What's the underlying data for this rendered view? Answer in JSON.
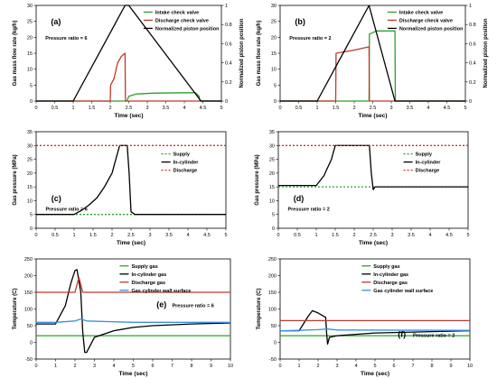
{
  "chart_data": [
    {
      "panel": "(a)",
      "type": "line",
      "annotation": "Pressure ratio = 6",
      "xlabel": "Time (sec)",
      "ylabel": "Gas mass flow rate (kg/h)",
      "y2label": "Normalized piston position",
      "xlim": [
        0,
        5
      ],
      "ylim": [
        0,
        30
      ],
      "y2lim": [
        0,
        1
      ],
      "xticks": [
        0,
        0.5,
        1,
        1.5,
        2,
        2.5,
        3,
        3.5,
        4,
        4.5,
        5
      ],
      "yticks": [
        0,
        5,
        10,
        15,
        20,
        25,
        30
      ],
      "y2ticks": [
        0,
        0.2,
        0.4,
        0.6,
        0.8,
        1
      ],
      "legend_position": "top-right",
      "series": [
        {
          "name": "Intake check valve",
          "color": "#2ca02c",
          "axis": "left",
          "x": [
            0,
            2.45,
            2.5,
            2.7,
            3.2,
            4.0,
            4.3,
            4.4,
            4.42,
            5
          ],
          "y": [
            0,
            0,
            1.5,
            2.2,
            2.5,
            2.6,
            2.6,
            1.5,
            0,
            0
          ]
        },
        {
          "name": "Discharge check valve",
          "color": "#c0392b",
          "axis": "left",
          "x": [
            0,
            2.0,
            2.01,
            2.1,
            2.2,
            2.3,
            2.4,
            2.41,
            5
          ],
          "y": [
            0,
            0,
            5,
            7,
            12,
            14,
            15,
            0,
            0
          ]
        },
        {
          "name": "Normalized piston position",
          "color": "#000000",
          "axis": "right",
          "x": [
            0,
            1.0,
            2.4,
            2.5,
            4.45,
            5
          ],
          "y": [
            0,
            0,
            1.0,
            1.0,
            0,
            0
          ]
        }
      ]
    },
    {
      "panel": "(b)",
      "type": "line",
      "annotation": "Pressure ratio = 2",
      "xlabel": "Time (sec)",
      "ylabel": "Gas mass flow rate (kg/h)",
      "y2label": "Normalized piston position",
      "xlim": [
        0,
        5
      ],
      "ylim": [
        0,
        30
      ],
      "y2lim": [
        0,
        1
      ],
      "xticks": [
        0,
        0.5,
        1,
        1.5,
        2,
        2.5,
        3,
        3.5,
        4,
        4.5,
        5
      ],
      "yticks": [
        0,
        5,
        10,
        15,
        20,
        25,
        30
      ],
      "y2ticks": [
        0,
        0.2,
        0.4,
        0.6,
        0.8,
        1
      ],
      "legend_position": "top-right",
      "series": [
        {
          "name": "Intake check valve",
          "color": "#2ca02c",
          "axis": "left",
          "x": [
            0,
            2.4,
            2.41,
            2.6,
            3.1,
            3.11,
            5
          ],
          "y": [
            0,
            0,
            21,
            22,
            22,
            0,
            0
          ]
        },
        {
          "name": "Discharge check valve",
          "color": "#c0392b",
          "axis": "left",
          "x": [
            0,
            1.5,
            1.51,
            2.0,
            2.4,
            2.41,
            5
          ],
          "y": [
            0,
            0,
            15,
            16,
            17,
            0,
            0
          ]
        },
        {
          "name": "Normalized piston position",
          "color": "#000000",
          "axis": "right",
          "x": [
            0,
            1.0,
            2.4,
            3.1,
            5
          ],
          "y": [
            0,
            0,
            1.0,
            0,
            0
          ]
        }
      ]
    },
    {
      "panel": "(c)",
      "type": "line",
      "annotation": "Pressure ratio = 6",
      "xlabel": "Time (sec)",
      "ylabel": "Gas pressure (MPa)",
      "xlim": [
        0,
        5
      ],
      "ylim": [
        0,
        35
      ],
      "xticks": [
        0,
        0.5,
        1,
        1.5,
        2,
        2.5,
        3,
        3.5,
        4,
        4.5,
        5
      ],
      "yticks": [
        0,
        5,
        10,
        15,
        20,
        25,
        30,
        35
      ],
      "legend_position": "right",
      "series": [
        {
          "name": "Supply",
          "color": "#2ca02c",
          "dash": "2,2",
          "x": [
            0,
            5
          ],
          "y": [
            5,
            5
          ]
        },
        {
          "name": "In-cylinder",
          "color": "#000000",
          "x": [
            0,
            1.0,
            1.2,
            1.4,
            1.6,
            1.8,
            2.0,
            2.1,
            2.2,
            2.4,
            2.45,
            2.5,
            2.6,
            5
          ],
          "y": [
            5,
            5,
            6.5,
            8.5,
            11,
            15,
            20,
            25,
            30,
            30,
            20,
            6,
            5,
            5
          ]
        },
        {
          "name": "Discharge",
          "color": "#c0392b",
          "dash": "2,2",
          "x": [
            0,
            5
          ],
          "y": [
            30,
            30
          ]
        }
      ]
    },
    {
      "panel": "(d)",
      "type": "line",
      "annotation": "Pressure ratio = 2",
      "xlabel": "Time (sec)",
      "ylabel": "Gas pressure (MPa)",
      "xlim": [
        0,
        5
      ],
      "ylim": [
        0,
        35
      ],
      "xticks": [
        0,
        0.5,
        1,
        1.5,
        2,
        2.5,
        3,
        3.5,
        4,
        4.5,
        5
      ],
      "yticks": [
        0,
        5,
        10,
        15,
        20,
        25,
        30,
        35
      ],
      "legend_position": "right",
      "series": [
        {
          "name": "Supply",
          "color": "#2ca02c",
          "dash": "2,2",
          "x": [
            0,
            5
          ],
          "y": [
            15,
            15
          ]
        },
        {
          "name": "In-cylinder",
          "color": "#000000",
          "x": [
            0,
            1.0,
            1.2,
            1.4,
            1.5,
            2.0,
            2.4,
            2.45,
            2.5,
            2.55,
            5
          ],
          "y": [
            15.5,
            15.5,
            19,
            25,
            30,
            30,
            30,
            20,
            14,
            15,
            15
          ]
        },
        {
          "name": "Discharge",
          "color": "#c0392b",
          "dash": "2,2",
          "x": [
            0,
            5
          ],
          "y": [
            30,
            30
          ]
        }
      ]
    },
    {
      "panel": "(e)",
      "type": "line",
      "annotation": "Pressure ratio = 6",
      "xlabel": "Time (sec)",
      "ylabel": "Temperature (C)",
      "xlim": [
        0,
        10
      ],
      "ylim": [
        -50,
        250
      ],
      "xticks": [
        0,
        1,
        2,
        3,
        4,
        5,
        6,
        7,
        8,
        9,
        10
      ],
      "yticks": [
        -50,
        0,
        50,
        100,
        150,
        200,
        250
      ],
      "legend_position": "top-right",
      "series": [
        {
          "name": "Supply gas",
          "color": "#2ca02c",
          "x": [
            0,
            10
          ],
          "y": [
            20,
            20
          ]
        },
        {
          "name": "In-cylinder gas",
          "color": "#000000",
          "x": [
            0,
            1.0,
            1.5,
            1.8,
            2.0,
            2.1,
            2.3,
            2.4,
            2.5,
            2.6,
            3.0,
            4.0,
            5.0,
            6.0,
            8.0,
            10.0
          ],
          "y": [
            55,
            55,
            110,
            180,
            215,
            218,
            150,
            30,
            -30,
            -30,
            15,
            35,
            45,
            50,
            55,
            58
          ]
        },
        {
          "name": "Discharge gas",
          "color": "#c0392b",
          "x": [
            0,
            2.0,
            2.2,
            2.4,
            2.6,
            10
          ],
          "y": [
            150,
            150,
            195,
            150,
            150,
            150
          ]
        },
        {
          "name": "Gas cylinder wall surface",
          "color": "#3b8fe0",
          "x": [
            0,
            1.0,
            2.0,
            2.3,
            2.6,
            5.0,
            10
          ],
          "y": [
            60,
            60,
            64,
            70,
            64,
            60,
            60
          ]
        }
      ]
    },
    {
      "panel": "(f)",
      "type": "line",
      "annotation": "Pressure ratio = 2",
      "xlabel": "Time (sec)",
      "ylabel": "Temperature (C)",
      "xlim": [
        0,
        10
      ],
      "ylim": [
        -50,
        250
      ],
      "xticks": [
        0,
        1,
        2,
        3,
        4,
        5,
        6,
        7,
        8,
        9,
        10
      ],
      "yticks": [
        -50,
        0,
        50,
        100,
        150,
        200,
        250
      ],
      "legend_position": "top-right",
      "series": [
        {
          "name": "Supply gas",
          "color": "#2ca02c",
          "x": [
            0,
            10
          ],
          "y": [
            20,
            20
          ]
        },
        {
          "name": "In-cylinder gas",
          "color": "#000000",
          "x": [
            0,
            1.0,
            1.5,
            1.7,
            2.0,
            2.4,
            2.45,
            2.5,
            2.6,
            3.0,
            5.0,
            10.0
          ],
          "y": [
            35,
            35,
            80,
            95,
            88,
            75,
            30,
            -5,
            15,
            20,
            28,
            35
          ]
        },
        {
          "name": "Discharge gas",
          "color": "#c0392b",
          "x": [
            0,
            10
          ],
          "y": [
            65,
            65
          ]
        },
        {
          "name": "Gas cylinder wall surface",
          "color": "#3b8fe0",
          "x": [
            0,
            1.0,
            2.0,
            2.5,
            3.0,
            10.0
          ],
          "y": [
            35,
            36,
            38,
            40,
            37,
            36
          ]
        }
      ]
    }
  ]
}
